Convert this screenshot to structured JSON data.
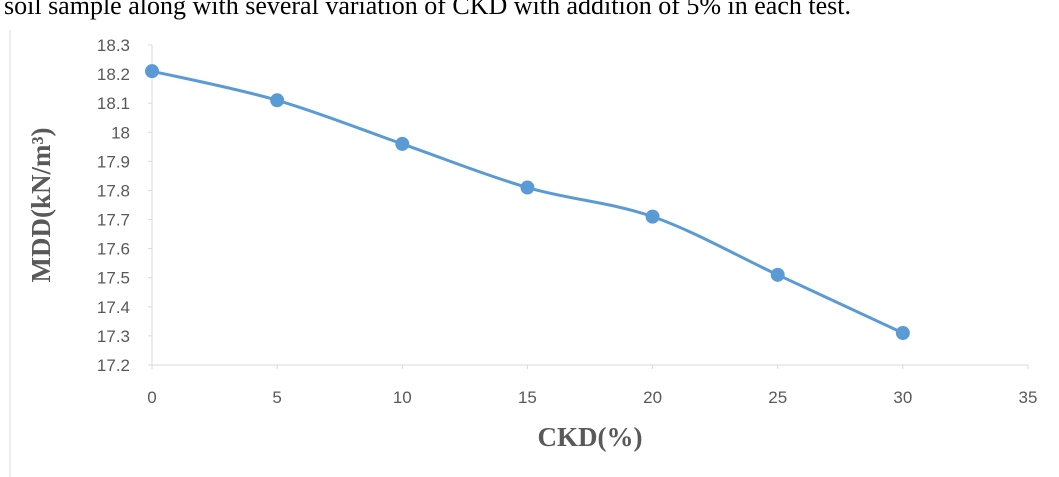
{
  "caption": "soil sample along with several variation of CKD with addition of 5% in each test.",
  "chart_data": {
    "type": "line",
    "x_label": "CKD(%)",
    "y_label": "MDD(kN/m³)",
    "x": [
      0,
      5,
      10,
      15,
      20,
      25,
      30
    ],
    "series": [
      {
        "name": "MDD",
        "color": "#5b9bd5",
        "values": [
          18.21,
          18.11,
          17.96,
          17.81,
          17.71,
          17.51,
          17.31
        ]
      }
    ],
    "xlim": [
      0,
      35
    ],
    "xticks": [
      0,
      5,
      10,
      15,
      20,
      25,
      30,
      35
    ],
    "ylim": [
      17.2,
      18.3
    ],
    "yticks": [
      17.2,
      17.3,
      17.4,
      17.5,
      17.6,
      17.7,
      17.8,
      17.9,
      18,
      18.1,
      18.2,
      18.3
    ]
  }
}
